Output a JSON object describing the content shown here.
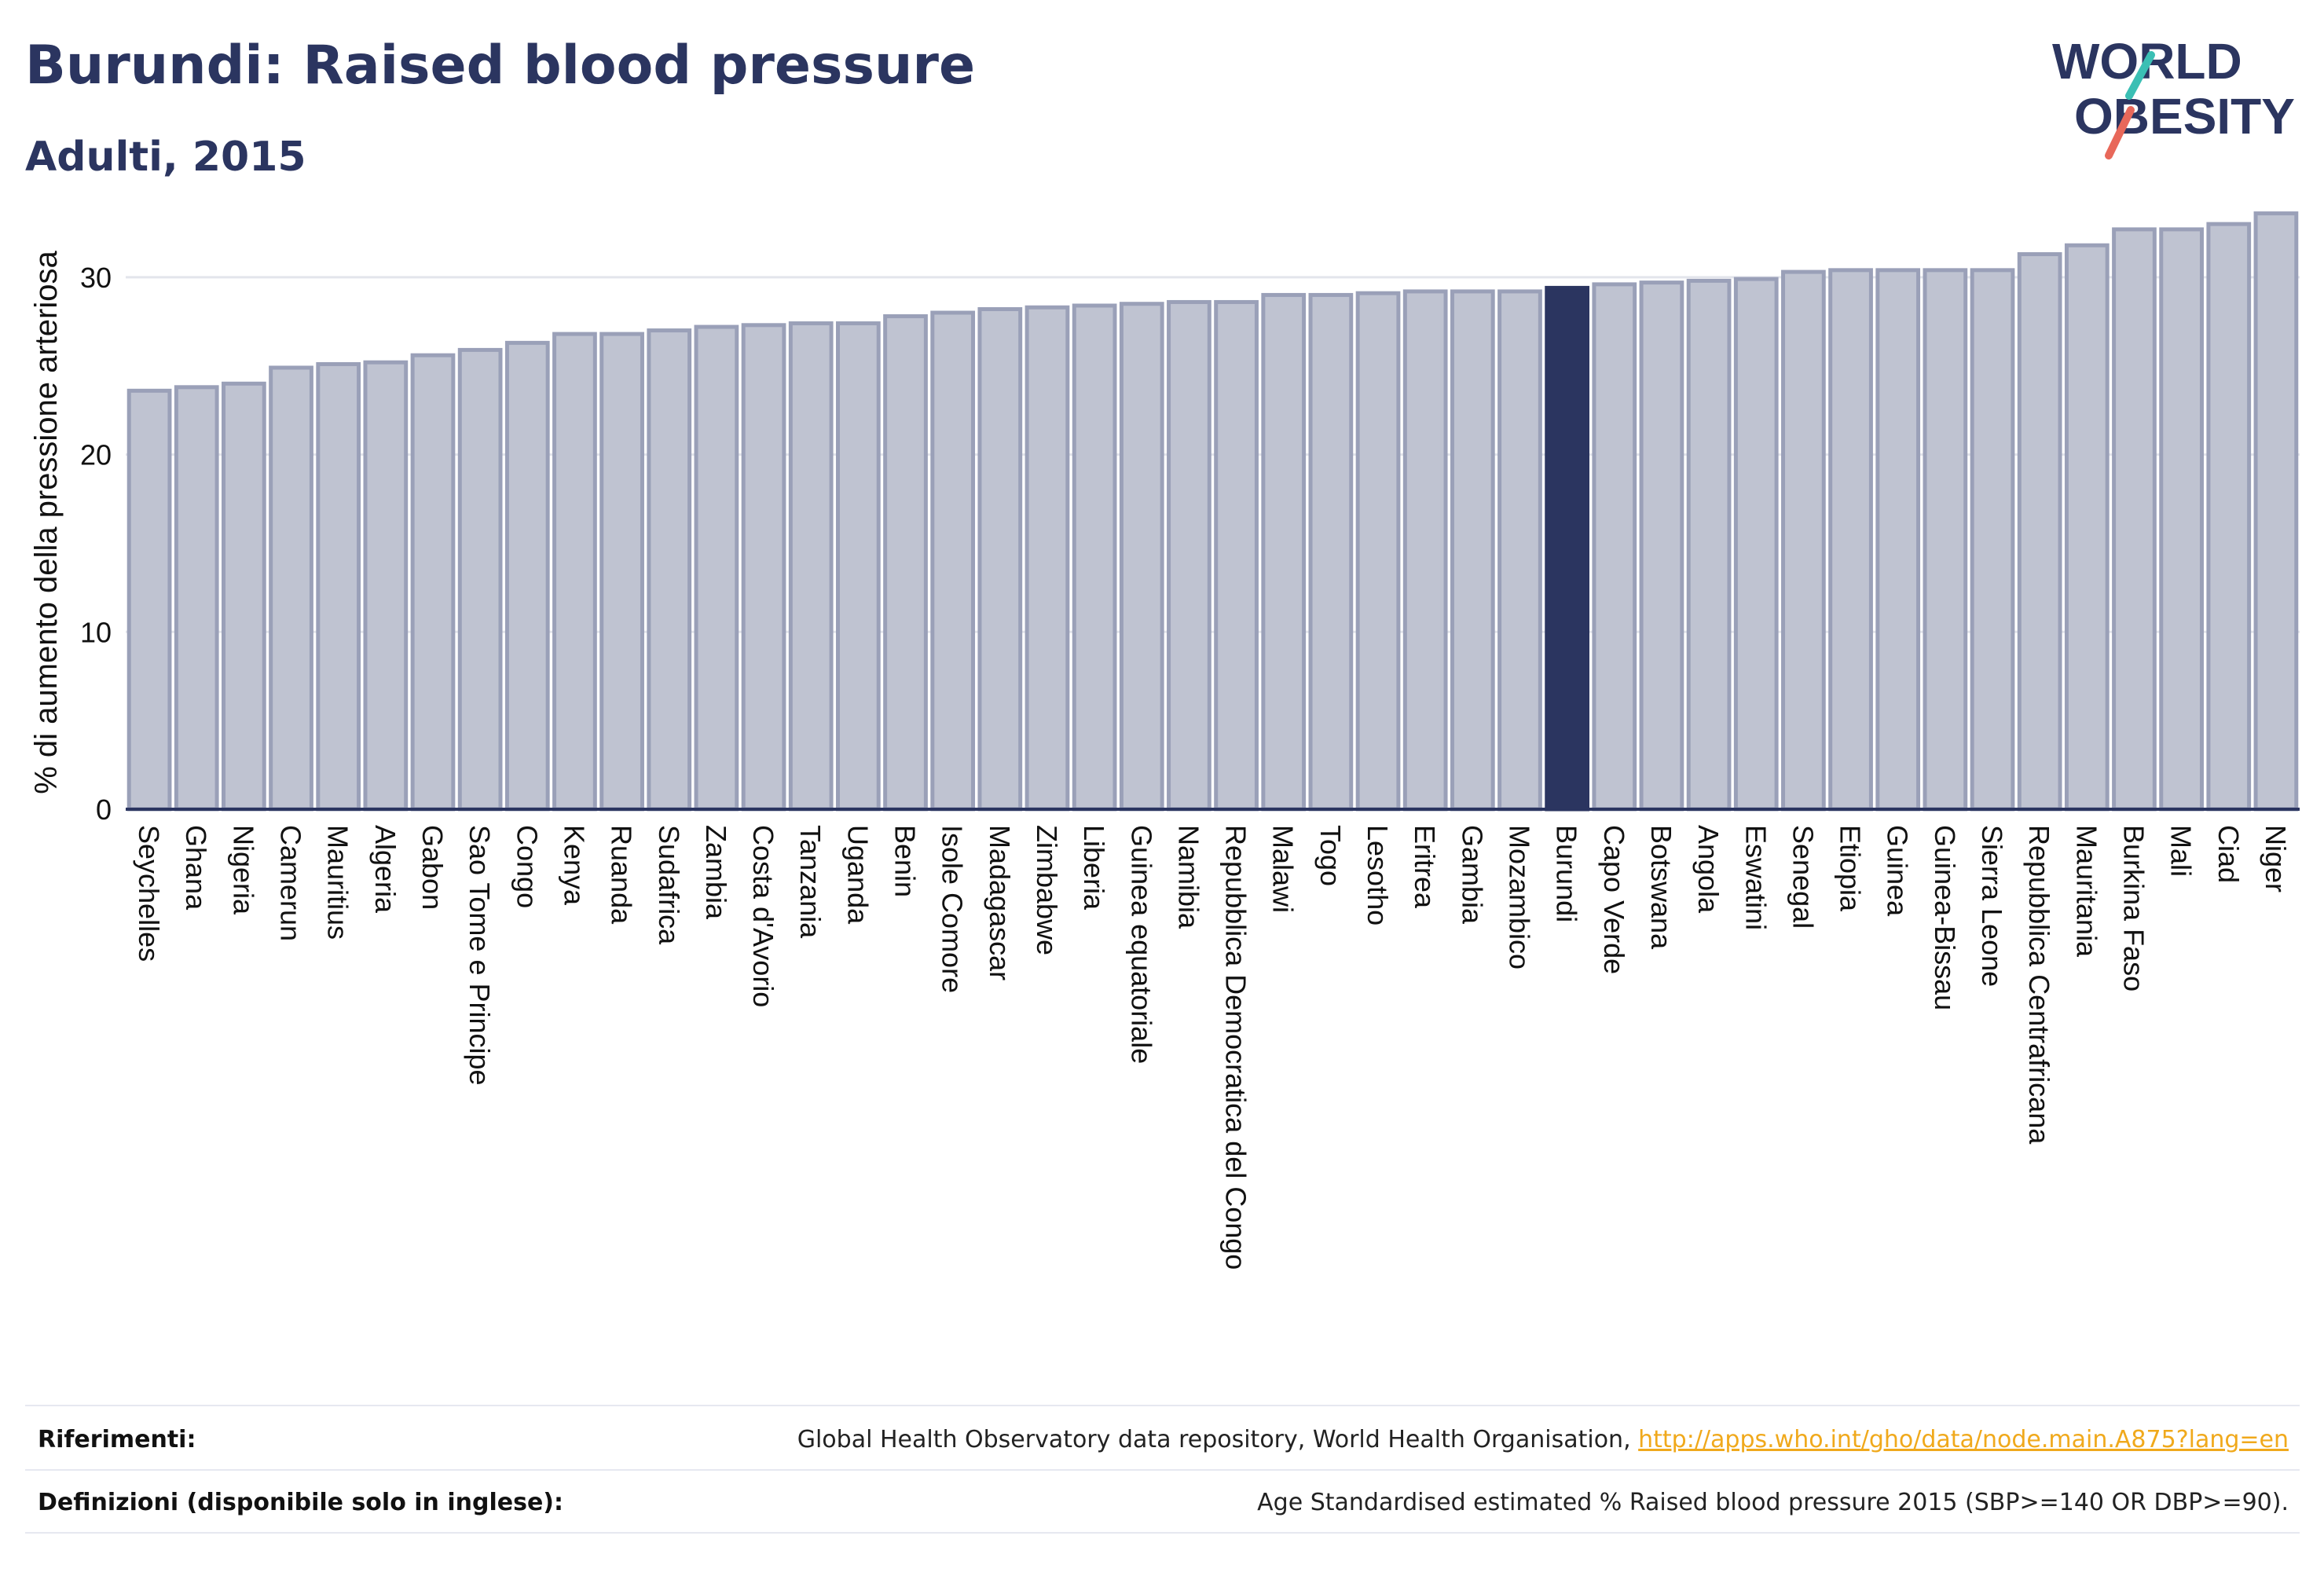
{
  "header": {
    "title": "Burundi: Raised blood pressure",
    "subtitle": "Adulti, 2015"
  },
  "logo": {
    "line1": "WORLD",
    "line2": "OBESITY",
    "colors": {
      "text": "#2b3560",
      "slash_top": "#3bbfb4",
      "slash_bottom": "#e8685a"
    }
  },
  "colors": {
    "bar_fill": "#bfc3d1",
    "bar_stroke": "#9aa0b8",
    "highlight_fill": "#2b3560",
    "axis": "#2b3560",
    "grid": "#e3e5ec"
  },
  "chart_data": {
    "type": "bar",
    "ylabel": "% di aumento della pressione arteriosa",
    "xlabel": "",
    "ylim": [
      0,
      35
    ],
    "yticks": [
      0,
      10,
      20,
      30
    ],
    "grid": true,
    "highlight": "Burundi",
    "categories": [
      "Seychelles",
      "Ghana",
      "Nigeria",
      "Camerun",
      "Mauritius",
      "Algeria",
      "Gabon",
      "Sao Tome e Principe",
      "Congo",
      "Kenya",
      "Ruanda",
      "Sudafrica",
      "Zambia",
      "Costa d'Avorio",
      "Tanzania",
      "Uganda",
      "Benin",
      "Isole Comore",
      "Madagascar",
      "Zimbabwe",
      "Liberia",
      "Guinea equatoriale",
      "Namibia",
      "Repubblica Democratica del Congo",
      "Malawi",
      "Togo",
      "Lesotho",
      "Eritrea",
      "Gambia",
      "Mozambico",
      "Burundi",
      "Capo Verde",
      "Botswana",
      "Angola",
      "Eswatini",
      "Senegal",
      "Etiopia",
      "Guinea",
      "Guinea-Bissau",
      "Sierra Leone",
      "Repubblica Centrafricana",
      "Mauritania",
      "Burkina Faso",
      "Mali",
      "Ciad",
      "Niger"
    ],
    "values": [
      23.6,
      23.8,
      24.0,
      24.9,
      25.1,
      25.2,
      25.6,
      25.9,
      26.3,
      26.8,
      26.8,
      27.0,
      27.2,
      27.3,
      27.4,
      27.4,
      27.8,
      28.0,
      28.2,
      28.3,
      28.4,
      28.5,
      28.6,
      28.6,
      29.0,
      29.0,
      29.1,
      29.2,
      29.2,
      29.2,
      29.4,
      29.6,
      29.7,
      29.8,
      29.9,
      30.3,
      30.4,
      30.4,
      30.4,
      30.4,
      31.3,
      31.8,
      32.7,
      32.7,
      33.0,
      33.6
    ]
  },
  "footer": {
    "references_label": "Riferimenti:",
    "references_text": "Global Health Observatory data repository, World Health Organisation, ",
    "references_link": "http://apps.who.int/gho/data/node.main.A875?lang=en",
    "definitions_label": "Definizioni (disponibile solo in inglese):",
    "definitions_text": "Age Standardised estimated % Raised blood pressure 2015 (SBP>=140 OR DBP>=90)."
  }
}
